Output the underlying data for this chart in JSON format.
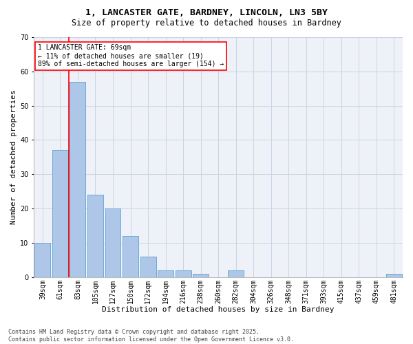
{
  "title1": "1, LANCASTER GATE, BARDNEY, LINCOLN, LN3 5BY",
  "title2": "Size of property relative to detached houses in Bardney",
  "xlabel": "Distribution of detached houses by size in Bardney",
  "ylabel": "Number of detached properties",
  "footnote": "Contains HM Land Registry data © Crown copyright and database right 2025.\nContains public sector information licensed under the Open Government Licence v3.0.",
  "categories": [
    "39sqm",
    "61sqm",
    "83sqm",
    "105sqm",
    "127sqm",
    "150sqm",
    "172sqm",
    "194sqm",
    "216sqm",
    "238sqm",
    "260sqm",
    "282sqm",
    "304sqm",
    "326sqm",
    "348sqm",
    "371sqm",
    "393sqm",
    "415sqm",
    "437sqm",
    "459sqm",
    "481sqm"
  ],
  "values": [
    10,
    37,
    57,
    24,
    20,
    12,
    6,
    2,
    2,
    1,
    0,
    2,
    0,
    0,
    0,
    0,
    0,
    0,
    0,
    0,
    1
  ],
  "bar_color": "#aec6e8",
  "bar_edge_color": "#6aaad4",
  "background_color": "#eef2f8",
  "grid_color": "#c8d4e4",
  "annotation_text": "1 LANCASTER GATE: 69sqm\n← 11% of detached houses are smaller (19)\n89% of semi-detached houses are larger (154) →",
  "redline_x": 1.5,
  "ylim": [
    0,
    70
  ],
  "yticks": [
    0,
    10,
    20,
    30,
    40,
    50,
    60,
    70
  ],
  "title1_fontsize": 9.5,
  "title2_fontsize": 8.5,
  "xlabel_fontsize": 8,
  "ylabel_fontsize": 8,
  "tick_fontsize": 7,
  "annot_fontsize": 7,
  "footnote_fontsize": 6
}
